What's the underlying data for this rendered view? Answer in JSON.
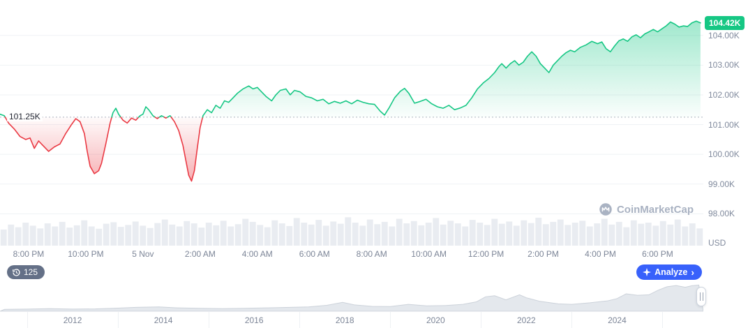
{
  "watermark": {
    "text": "CoinMarketCap"
  },
  "toolbar": {
    "history_count": "125",
    "analyze_label": "Analyze",
    "analyze_chevron": "›"
  },
  "chart_data": {
    "type": "line",
    "unit": "USD",
    "baseline": 101.25,
    "baseline_label": "101.25K",
    "last_price": 104.42,
    "last_price_label": "104.42K",
    "colors": {
      "up": "#16c784",
      "down": "#ea3943",
      "accent": "#3861fb"
    },
    "grid": "horizontal",
    "legend": "none",
    "ylim": [
      96.93,
      105.19
    ],
    "x_range": [
      0,
      24.6
    ],
    "y_ticks": [
      {
        "value": 104,
        "label": "104.00K"
      },
      {
        "value": 103,
        "label": "103.00K"
      },
      {
        "value": 102,
        "label": "102.00K"
      },
      {
        "value": 101,
        "label": "101.00K"
      },
      {
        "value": 100,
        "label": "100.00K"
      },
      {
        "value": 99,
        "label": "99.00K"
      },
      {
        "value": 98,
        "label": "98.00K"
      }
    ],
    "x_ticks": [
      {
        "t": 1,
        "label": "8:00 PM"
      },
      {
        "t": 3,
        "label": "10:00 PM"
      },
      {
        "t": 5,
        "label": "5 Nov"
      },
      {
        "t": 7,
        "label": "2:00 AM"
      },
      {
        "t": 9,
        "label": "4:00 AM"
      },
      {
        "t": 11,
        "label": "6:00 AM"
      },
      {
        "t": 13,
        "label": "8:00 AM"
      },
      {
        "t": 15,
        "label": "10:00 AM"
      },
      {
        "t": 17,
        "label": "12:00 PM"
      },
      {
        "t": 19,
        "label": "2:00 PM"
      },
      {
        "t": 21,
        "label": "4:00 PM"
      },
      {
        "t": 23,
        "label": "6:00 PM"
      }
    ],
    "series": [
      {
        "name": "price",
        "points": [
          [
            0,
            101.35
          ],
          [
            0.15,
            101.3
          ],
          [
            0.3,
            101.05
          ],
          [
            0.5,
            100.85
          ],
          [
            0.7,
            100.6
          ],
          [
            0.9,
            100.5
          ],
          [
            1.05,
            100.55
          ],
          [
            1.2,
            100.2
          ],
          [
            1.35,
            100.45
          ],
          [
            1.5,
            100.3
          ],
          [
            1.7,
            100.1
          ],
          [
            1.9,
            100.25
          ],
          [
            2.1,
            100.35
          ],
          [
            2.3,
            100.7
          ],
          [
            2.5,
            101.0
          ],
          [
            2.65,
            101.2
          ],
          [
            2.8,
            101.1
          ],
          [
            2.95,
            100.7
          ],
          [
            3.05,
            100.1
          ],
          [
            3.15,
            99.6
          ],
          [
            3.3,
            99.35
          ],
          [
            3.45,
            99.45
          ],
          [
            3.55,
            99.7
          ],
          [
            3.7,
            100.35
          ],
          [
            3.85,
            101.05
          ],
          [
            3.95,
            101.4
          ],
          [
            4.05,
            101.55
          ],
          [
            4.15,
            101.35
          ],
          [
            4.3,
            101.15
          ],
          [
            4.45,
            101.05
          ],
          [
            4.6,
            101.22
          ],
          [
            4.75,
            101.15
          ],
          [
            4.9,
            101.3
          ],
          [
            5.0,
            101.35
          ],
          [
            5.1,
            101.6
          ],
          [
            5.2,
            101.5
          ],
          [
            5.35,
            101.3
          ],
          [
            5.5,
            101.2
          ],
          [
            5.65,
            101.3
          ],
          [
            5.8,
            101.22
          ],
          [
            5.95,
            101.3
          ],
          [
            6.1,
            101.1
          ],
          [
            6.25,
            100.8
          ],
          [
            6.4,
            100.3
          ],
          [
            6.5,
            99.8
          ],
          [
            6.6,
            99.3
          ],
          [
            6.7,
            99.1
          ],
          [
            6.8,
            99.45
          ],
          [
            6.9,
            100.2
          ],
          [
            7.0,
            100.9
          ],
          [
            7.1,
            101.3
          ],
          [
            7.25,
            101.5
          ],
          [
            7.4,
            101.4
          ],
          [
            7.55,
            101.65
          ],
          [
            7.7,
            101.55
          ],
          [
            7.85,
            101.8
          ],
          [
            8.0,
            101.75
          ],
          [
            8.15,
            101.9
          ],
          [
            8.3,
            102.05
          ],
          [
            8.5,
            102.2
          ],
          [
            8.7,
            102.3
          ],
          [
            8.85,
            102.2
          ],
          [
            9.0,
            102.25
          ],
          [
            9.15,
            102.1
          ],
          [
            9.3,
            101.95
          ],
          [
            9.5,
            101.8
          ],
          [
            9.65,
            102.0
          ],
          [
            9.8,
            102.15
          ],
          [
            10.0,
            102.2
          ],
          [
            10.15,
            102.0
          ],
          [
            10.3,
            102.15
          ],
          [
            10.5,
            102.1
          ],
          [
            10.7,
            101.95
          ],
          [
            10.9,
            101.9
          ],
          [
            11.1,
            101.8
          ],
          [
            11.3,
            101.85
          ],
          [
            11.5,
            101.7
          ],
          [
            11.7,
            101.78
          ],
          [
            11.9,
            101.72
          ],
          [
            12.1,
            101.8
          ],
          [
            12.3,
            101.7
          ],
          [
            12.5,
            101.82
          ],
          [
            12.7,
            101.75
          ],
          [
            12.9,
            101.7
          ],
          [
            13.1,
            101.68
          ],
          [
            13.3,
            101.45
          ],
          [
            13.45,
            101.32
          ],
          [
            13.6,
            101.55
          ],
          [
            13.8,
            101.9
          ],
          [
            14.0,
            102.12
          ],
          [
            14.15,
            102.22
          ],
          [
            14.3,
            102.05
          ],
          [
            14.5,
            101.72
          ],
          [
            14.7,
            101.78
          ],
          [
            14.9,
            101.85
          ],
          [
            15.1,
            101.7
          ],
          [
            15.3,
            101.6
          ],
          [
            15.5,
            101.55
          ],
          [
            15.7,
            101.65
          ],
          [
            15.9,
            101.5
          ],
          [
            16.1,
            101.56
          ],
          [
            16.3,
            101.65
          ],
          [
            16.5,
            101.9
          ],
          [
            16.7,
            102.2
          ],
          [
            16.9,
            102.4
          ],
          [
            17.1,
            102.55
          ],
          [
            17.3,
            102.75
          ],
          [
            17.45,
            102.95
          ],
          [
            17.55,
            103.05
          ],
          [
            17.7,
            102.9
          ],
          [
            17.85,
            103.05
          ],
          [
            18.0,
            103.15
          ],
          [
            18.15,
            103.0
          ],
          [
            18.3,
            103.1
          ],
          [
            18.45,
            103.3
          ],
          [
            18.6,
            103.45
          ],
          [
            18.75,
            103.3
          ],
          [
            18.9,
            103.05
          ],
          [
            19.05,
            102.9
          ],
          [
            19.2,
            102.75
          ],
          [
            19.35,
            103.0
          ],
          [
            19.5,
            103.15
          ],
          [
            19.65,
            103.3
          ],
          [
            19.8,
            103.42
          ],
          [
            19.95,
            103.5
          ],
          [
            20.1,
            103.45
          ],
          [
            20.3,
            103.6
          ],
          [
            20.5,
            103.68
          ],
          [
            20.7,
            103.8
          ],
          [
            20.9,
            103.72
          ],
          [
            21.05,
            103.78
          ],
          [
            21.2,
            103.55
          ],
          [
            21.35,
            103.45
          ],
          [
            21.5,
            103.65
          ],
          [
            21.65,
            103.82
          ],
          [
            21.8,
            103.88
          ],
          [
            21.95,
            103.8
          ],
          [
            22.1,
            103.95
          ],
          [
            22.25,
            104.02
          ],
          [
            22.4,
            103.92
          ],
          [
            22.55,
            104.05
          ],
          [
            22.7,
            104.12
          ],
          [
            22.85,
            104.2
          ],
          [
            23.0,
            104.12
          ],
          [
            23.15,
            104.22
          ],
          [
            23.3,
            104.32
          ],
          [
            23.45,
            104.45
          ],
          [
            23.6,
            104.38
          ],
          [
            23.75,
            104.28
          ],
          [
            23.9,
            104.32
          ],
          [
            24.05,
            104.3
          ],
          [
            24.2,
            104.42
          ],
          [
            24.35,
            104.48
          ],
          [
            24.5,
            104.42
          ]
        ]
      }
    ],
    "volume": [
      0.42,
      0.55,
      0.48,
      0.6,
      0.52,
      0.45,
      0.58,
      0.5,
      0.62,
      0.47,
      0.53,
      0.66,
      0.5,
      0.44,
      0.57,
      0.61,
      0.49,
      0.54,
      0.63,
      0.52,
      0.46,
      0.59,
      0.68,
      0.55,
      0.5,
      0.64,
      0.58,
      0.47,
      0.6,
      0.53,
      0.65,
      0.5,
      0.56,
      0.7,
      0.62,
      0.54,
      0.48,
      0.66,
      0.58,
      0.51,
      0.72,
      0.6,
      0.55,
      0.67,
      0.52,
      0.63,
      0.57,
      0.74,
      0.6,
      0.52,
      0.68,
      0.56,
      0.62,
      0.5,
      0.7,
      0.58,
      0.64,
      0.53,
      0.6,
      0.72,
      0.55,
      0.65,
      0.58,
      0.5,
      0.67,
      0.6,
      0.54,
      0.7,
      0.57,
      0.63,
      0.52,
      0.66,
      0.59,
      0.73,
      0.56,
      0.62,
      0.68,
      0.54,
      0.6,
      0.65,
      0.5,
      0.58,
      0.7,
      0.55,
      0.62,
      0.48,
      0.66,
      0.57,
      0.6,
      0.52,
      0.64,
      0.55,
      0.68,
      0.5,
      0.58,
      0.45
    ],
    "navigator": {
      "x_range": [
        2010.4,
        2025.9
      ],
      "year_ticks": [
        {
          "value": 2012,
          "label": "2012"
        },
        {
          "value": 2014,
          "label": "2014"
        },
        {
          "value": 2016,
          "label": "2016"
        },
        {
          "value": 2018,
          "label": "2018"
        },
        {
          "value": 2020,
          "label": "2020"
        },
        {
          "value": 2022,
          "label": "2022"
        },
        {
          "value": 2024,
          "label": "2024"
        }
      ],
      "minor_ticks": [
        2011,
        2013,
        2015,
        2017,
        2019,
        2021,
        2023,
        2025
      ],
      "points": [
        [
          2010.5,
          0.02
        ],
        [
          2011,
          0.03
        ],
        [
          2011.5,
          0.05
        ],
        [
          2012,
          0.03
        ],
        [
          2012.5,
          0.04
        ],
        [
          2013,
          0.07
        ],
        [
          2013.4,
          0.1
        ],
        [
          2013.9,
          0.12
        ],
        [
          2014.3,
          0.08
        ],
        [
          2014.8,
          0.06
        ],
        [
          2015.3,
          0.05
        ],
        [
          2015.8,
          0.06
        ],
        [
          2016.3,
          0.08
        ],
        [
          2016.8,
          0.1
        ],
        [
          2017.2,
          0.12
        ],
        [
          2017.6,
          0.18
        ],
        [
          2017.95,
          0.3
        ],
        [
          2018.2,
          0.2
        ],
        [
          2018.6,
          0.14
        ],
        [
          2019.0,
          0.13
        ],
        [
          2019.4,
          0.22
        ],
        [
          2019.8,
          0.16
        ],
        [
          2020.2,
          0.17
        ],
        [
          2020.6,
          0.22
        ],
        [
          2020.9,
          0.32
        ],
        [
          2021.1,
          0.52
        ],
        [
          2021.3,
          0.56
        ],
        [
          2021.55,
          0.4
        ],
        [
          2021.85,
          0.6
        ],
        [
          2022.0,
          0.48
        ],
        [
          2022.3,
          0.34
        ],
        [
          2022.7,
          0.24
        ],
        [
          2023.0,
          0.22
        ],
        [
          2023.4,
          0.28
        ],
        [
          2023.8,
          0.36
        ],
        [
          2024.0,
          0.45
        ],
        [
          2024.2,
          0.64
        ],
        [
          2024.45,
          0.58
        ],
        [
          2024.7,
          0.6
        ],
        [
          2024.9,
          0.78
        ],
        [
          2025.1,
          0.92
        ],
        [
          2025.3,
          0.97
        ],
        [
          2025.5,
          0.9
        ],
        [
          2025.65,
          0.96
        ],
        [
          2025.8,
          0.99
        ]
      ]
    }
  }
}
